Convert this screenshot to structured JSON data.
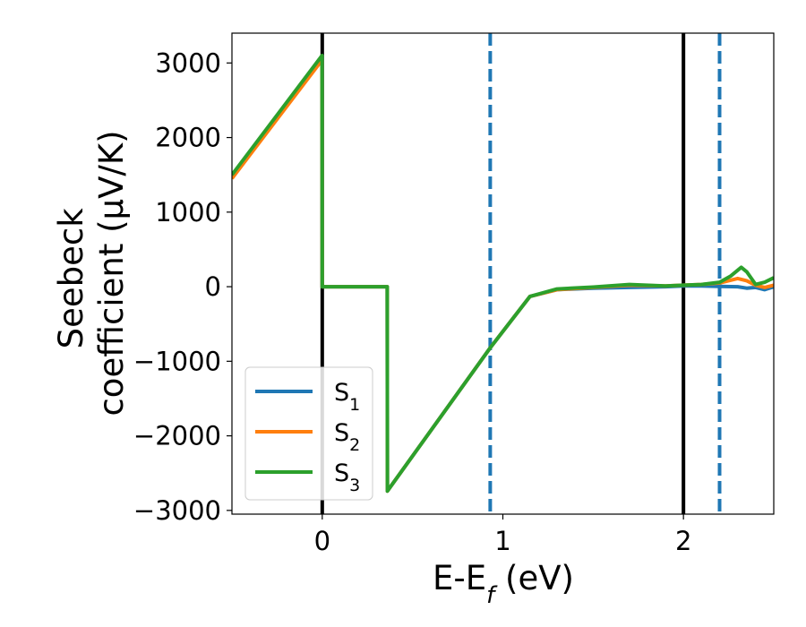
{
  "chart_data": {
    "type": "line",
    "title": "",
    "xlabel": "E-E_f (eV)",
    "xlabel_parts": {
      "base": "E-E",
      "sub": "f",
      "tail": " (eV)"
    },
    "ylabel": "Seebeck coefficient  (μV/K)",
    "ylabel_lines": [
      "Seebeck",
      "coefficient  (μV/K)"
    ],
    "xlim": [
      -0.5,
      2.5
    ],
    "ylim": [
      -3050,
      3400
    ],
    "x_ticks": [
      0,
      1,
      2
    ],
    "x_tick_labels": [
      "0",
      "1",
      "2"
    ],
    "y_ticks": [
      -3000,
      -2000,
      -1000,
      0,
      1000,
      2000,
      3000
    ],
    "y_tick_labels": [
      "−3000",
      "−2000",
      "−1000",
      "0",
      "1000",
      "2000",
      "3000"
    ],
    "grid": false,
    "legend_position": "lower-left",
    "vlines": [
      {
        "x": 0.0,
        "style": "solid",
        "color": "#000000"
      },
      {
        "x": 2.0,
        "style": "solid",
        "color": "#000000"
      },
      {
        "x": 0.93,
        "style": "dashed",
        "color": "#1f77b4"
      },
      {
        "x": 2.2,
        "style": "dashed",
        "color": "#1f77b4"
      }
    ],
    "series": [
      {
        "name": "S_1",
        "label_base": "S",
        "label_sub": "1",
        "color": "#1f77b4",
        "x": [
          -0.5,
          -0.001,
          0.0,
          0.36,
          0.361,
          0.93,
          1.15,
          1.3,
          1.5,
          1.7,
          1.9,
          2.0,
          2.1,
          2.2,
          2.3,
          2.35,
          2.4,
          2.45,
          2.5
        ],
        "y": [
          1490,
          3080,
          0,
          0,
          -2740,
          -820,
          -130,
          -40,
          -20,
          -10,
          0,
          10,
          10,
          5,
          0,
          -20,
          -10,
          -40,
          0
        ]
      },
      {
        "name": "S_2",
        "label_base": "S",
        "label_sub": "2",
        "color": "#ff7f0e",
        "x": [
          -0.5,
          -0.001,
          0.0,
          0.36,
          0.361,
          0.93,
          1.15,
          1.3,
          1.5,
          1.7,
          1.9,
          2.0,
          2.1,
          2.2,
          2.3,
          2.35,
          2.4,
          2.45,
          2.5
        ],
        "y": [
          1450,
          3040,
          0,
          0,
          -2740,
          -820,
          -130,
          -40,
          -10,
          20,
          10,
          20,
          30,
          50,
          110,
          80,
          20,
          -10,
          20
        ]
      },
      {
        "name": "S_3",
        "label_base": "S",
        "label_sub": "3",
        "color": "#2ca02c",
        "x": [
          -0.5,
          -0.001,
          0.0,
          0.36,
          0.361,
          0.93,
          1.15,
          1.3,
          1.5,
          1.7,
          1.9,
          2.0,
          2.1,
          2.2,
          2.26,
          2.32,
          2.35,
          2.4,
          2.45,
          2.5
        ],
        "y": [
          1500,
          3100,
          0,
          0,
          -2740,
          -820,
          -130,
          -30,
          -5,
          30,
          10,
          20,
          30,
          60,
          140,
          260,
          200,
          30,
          60,
          120
        ]
      }
    ]
  }
}
